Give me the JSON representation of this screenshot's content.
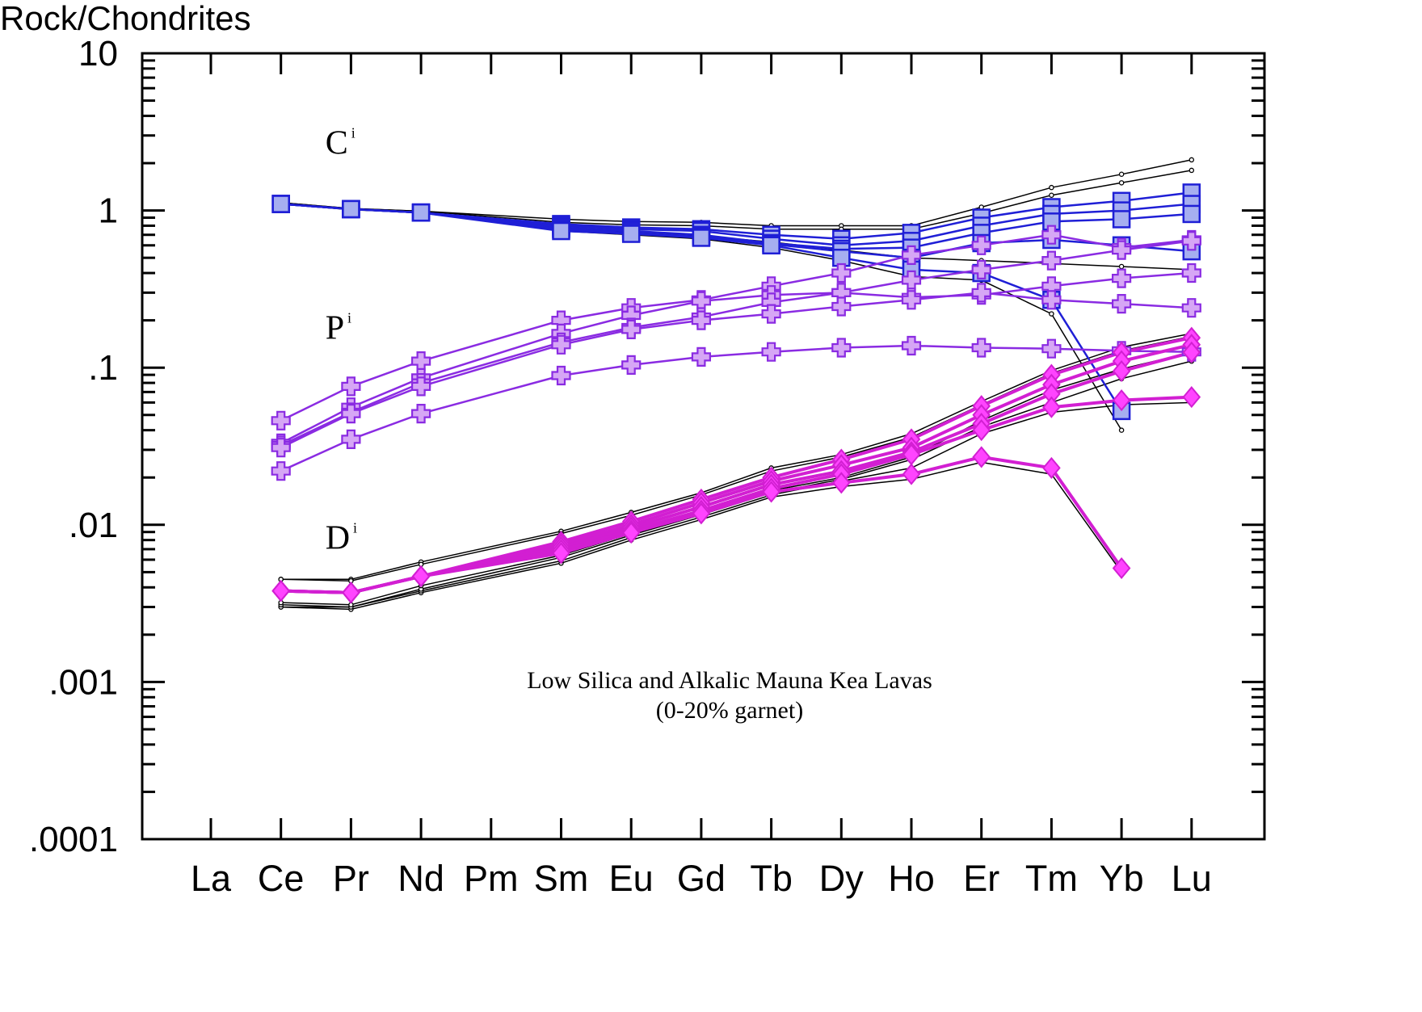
{
  "chart_data": {
    "type": "line",
    "ylabel": "Rock/Chondrites",
    "y_scale": "log",
    "ylim": [
      0.0001,
      10
    ],
    "ytick_labels": [
      ".0001",
      ".001",
      ".01",
      ".1",
      "1",
      "10"
    ],
    "categories": [
      "La",
      "Ce",
      "Pr",
      "Nd",
      "Pm",
      "Sm",
      "Eu",
      "Gd",
      "Tb",
      "Dy",
      "Ho",
      "Er",
      "Tm",
      "Yb",
      "Lu"
    ],
    "group_labels": [
      {
        "letter": "C",
        "sup": "i",
        "near": "Ce",
        "y": 2.7,
        "color": "#000000"
      },
      {
        "letter": "P",
        "sup": "i",
        "near": "Ce",
        "y": 0.18,
        "color": "#000000"
      },
      {
        "letter": "D",
        "sup": "i",
        "near": "Ce",
        "y": 0.0083,
        "color": "#000000"
      }
    ],
    "annotation_lines": [
      "Low Silica and Alkalic Mauna Kea Lavas",
      "(0-20% garnet)"
    ],
    "colors": {
      "C": "#1f1fd6",
      "C_fill": "#a6aef0",
      "P": "#8a2be2",
      "P_fill": "#d6a6f5",
      "D": "#d21fd2",
      "D_fill": "#ff44ff",
      "thin": "#000000"
    },
    "series": [
      {
        "group": "C",
        "marker": "square",
        "values": [
          null,
          1.1,
          1.02,
          0.97,
          null,
          0.82,
          0.78,
          0.76,
          0.7,
          0.66,
          0.72,
          0.9,
          1.05,
          1.15,
          1.3
        ]
      },
      {
        "group": "C",
        "marker": "square",
        "values": [
          null,
          1.1,
          1.02,
          0.97,
          null,
          0.8,
          0.76,
          0.74,
          0.66,
          0.6,
          0.64,
          0.8,
          0.95,
          1.0,
          1.1
        ]
      },
      {
        "group": "C",
        "marker": "square",
        "values": [
          null,
          1.1,
          1.02,
          0.97,
          null,
          0.78,
          0.74,
          0.7,
          0.62,
          0.57,
          0.58,
          0.72,
          0.85,
          0.88,
          0.95
        ]
      },
      {
        "group": "C",
        "marker": "square",
        "values": [
          null,
          1.1,
          1.02,
          0.97,
          null,
          0.76,
          0.72,
          0.68,
          0.61,
          0.55,
          0.5,
          0.62,
          0.65,
          0.6,
          0.55
        ]
      },
      {
        "group": "C",
        "marker": "square",
        "values": [
          null,
          1.1,
          1.02,
          0.97,
          null,
          0.74,
          0.71,
          0.67,
          0.6,
          0.5,
          0.42,
          0.4,
          0.27,
          0.053,
          null
        ]
      },
      {
        "group": "P",
        "marker": "plus",
        "values": [
          null,
          0.046,
          0.076,
          0.11,
          null,
          0.2,
          0.24,
          0.27,
          0.33,
          0.4,
          0.52,
          0.6,
          0.7,
          0.58,
          0.65
        ]
      },
      {
        "group": "P",
        "marker": "plus",
        "values": [
          null,
          0.033,
          0.056,
          0.086,
          null,
          0.165,
          0.215,
          0.265,
          0.29,
          0.3,
          0.36,
          0.42,
          0.48,
          0.56,
          0.64
        ]
      },
      {
        "group": "P",
        "marker": "plus",
        "values": [
          null,
          0.032,
          0.052,
          0.08,
          null,
          0.145,
          0.18,
          0.21,
          0.26,
          0.3,
          0.28,
          0.29,
          0.33,
          0.37,
          0.4
        ]
      },
      {
        "group": "P",
        "marker": "plus",
        "values": [
          null,
          0.031,
          0.051,
          0.076,
          null,
          0.14,
          0.175,
          0.2,
          0.22,
          0.245,
          0.27,
          0.3,
          0.27,
          0.255,
          0.24
        ]
      },
      {
        "group": "P",
        "marker": "plus",
        "values": [
          null,
          0.022,
          0.035,
          0.051,
          null,
          0.089,
          0.104,
          0.117,
          0.126,
          0.134,
          0.138,
          0.134,
          0.132,
          0.128,
          0.126
        ]
      },
      {
        "group": "D",
        "marker": "diamond",
        "values": [
          null,
          0.0038,
          0.0037,
          0.0047,
          null,
          0.0078,
          0.0105,
          0.0145,
          0.02,
          0.026,
          0.035,
          0.057,
          0.09,
          0.125,
          0.155
        ]
      },
      {
        "group": "D",
        "marker": "diamond",
        "values": [
          null,
          0.0038,
          0.0037,
          0.0047,
          null,
          0.0075,
          0.01,
          0.0138,
          0.019,
          0.024,
          0.031,
          0.05,
          0.078,
          0.11,
          0.14
        ]
      },
      {
        "group": "D",
        "marker": "diamond",
        "values": [
          null,
          0.0038,
          0.0037,
          0.0047,
          null,
          0.0072,
          0.0096,
          0.013,
          0.018,
          0.022,
          0.029,
          0.044,
          0.068,
          0.095,
          0.125
        ]
      },
      {
        "group": "D",
        "marker": "diamond",
        "values": [
          null,
          0.0038,
          0.0037,
          0.0047,
          null,
          0.0069,
          0.0092,
          0.0123,
          0.017,
          0.021,
          0.028,
          0.04,
          0.056,
          0.062,
          0.065
        ]
      },
      {
        "group": "D",
        "marker": "diamond",
        "values": [
          null,
          0.0038,
          0.0037,
          0.0047,
          null,
          0.0066,
          0.0089,
          0.0118,
          0.0162,
          0.0185,
          0.021,
          0.027,
          0.023,
          0.0053,
          null
        ]
      }
    ],
    "thin_series": [
      [
        null,
        1.12,
        1.03,
        0.99,
        null,
        0.88,
        0.85,
        0.84,
        0.8,
        0.8,
        0.8,
        1.05,
        1.4,
        1.7,
        2.1
      ],
      [
        null,
        1.12,
        1.03,
        0.99,
        null,
        0.84,
        0.81,
        0.8,
        0.76,
        0.76,
        0.76,
        0.96,
        1.25,
        1.5,
        1.8
      ],
      [
        null,
        1.1,
        1.01,
        0.97,
        null,
        0.74,
        0.7,
        0.66,
        0.58,
        0.48,
        0.38,
        0.36,
        0.22,
        0.04,
        null
      ],
      [
        null,
        1.11,
        1.02,
        0.98,
        null,
        0.78,
        0.73,
        0.69,
        0.63,
        0.56,
        0.5,
        0.48,
        0.46,
        0.44,
        0.42
      ],
      [
        null,
        0.0045,
        0.0045,
        0.0058,
        null,
        0.0091,
        0.012,
        0.016,
        0.023,
        0.028,
        0.038,
        0.061,
        0.096,
        0.135,
        0.165
      ],
      [
        null,
        0.0045,
        0.0044,
        0.0056,
        null,
        0.0088,
        0.0115,
        0.0155,
        0.022,
        0.027,
        0.036,
        0.058,
        0.092,
        0.128,
        0.158
      ],
      [
        null,
        0.003,
        0.0029,
        0.0037,
        null,
        0.0057,
        0.008,
        0.0108,
        0.015,
        0.0175,
        0.0195,
        0.025,
        0.021,
        0.005,
        null
      ],
      [
        null,
        0.003,
        0.003,
        0.0038,
        null,
        0.0059,
        0.0083,
        0.0112,
        0.0155,
        0.019,
        0.023,
        0.038,
        0.052,
        0.058,
        0.06
      ],
      [
        null,
        0.0031,
        0.003,
        0.0039,
        null,
        0.0062,
        0.0086,
        0.0116,
        0.016,
        0.0195,
        0.026,
        0.042,
        0.06,
        0.085,
        0.11
      ],
      [
        null,
        0.0032,
        0.0031,
        0.0041,
        null,
        0.0064,
        0.0088,
        0.012,
        0.0165,
        0.02,
        0.027,
        0.046,
        0.072,
        0.098,
        0.125
      ]
    ]
  }
}
